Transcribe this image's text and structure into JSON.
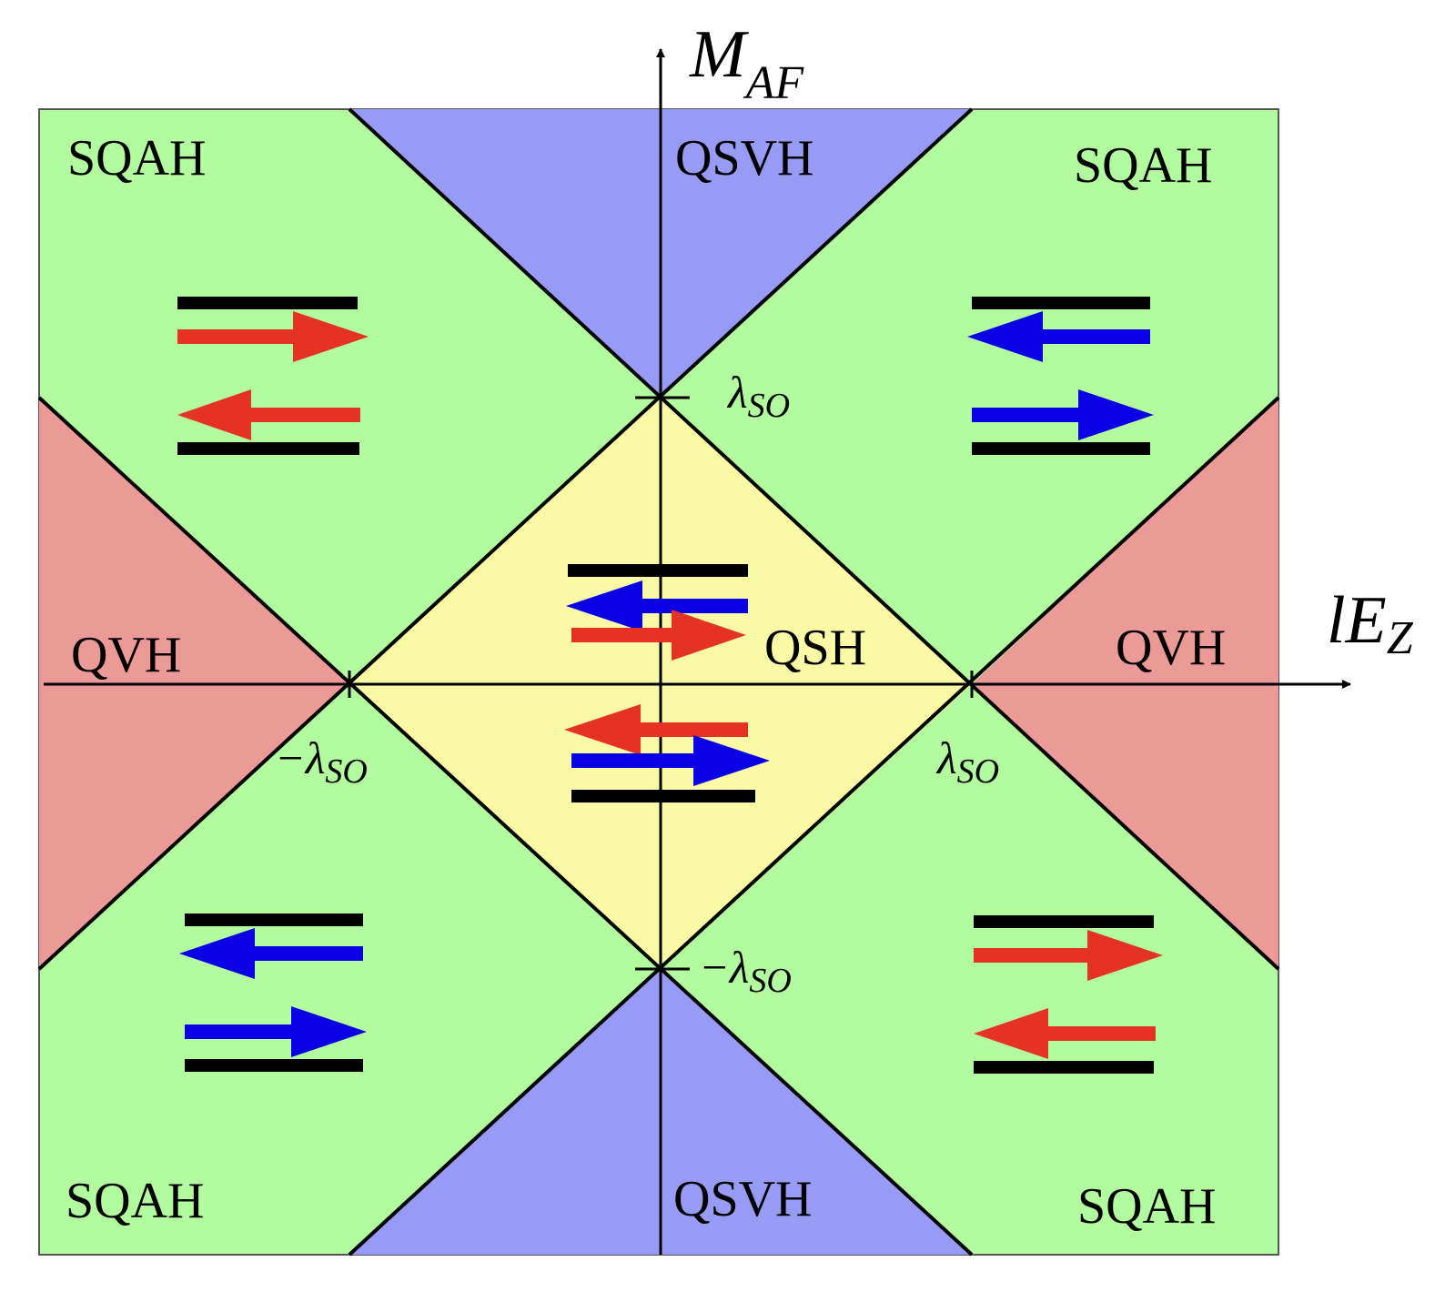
{
  "axes": {
    "x_label_main": "lE",
    "x_label_sub": "Z",
    "y_label_main": "M",
    "y_label_sub": "AF"
  },
  "ticks": {
    "x_neg": {
      "main": "−λ",
      "sub": "SO"
    },
    "x_pos": {
      "main": "λ",
      "sub": "SO"
    },
    "y_pos": {
      "main": "λ",
      "sub": "SO"
    },
    "y_neg": {
      "main": "−λ",
      "sub": "SO"
    }
  },
  "regions": {
    "qsvh_top": "QSVH",
    "qsvh_bottom": "QSVH",
    "sqah_top_left": "SQAH",
    "sqah_top_right": "SQAH",
    "sqah_bottom_left": "SQAH",
    "sqah_bottom_right": "SQAH",
    "qvh_left": "QVH",
    "qvh_right": "QVH",
    "qsh_center": "QSH"
  },
  "colors": {
    "sqah_fill": "#b2fb9f",
    "qsvh_fill": "#989bf3",
    "qvh_fill": "#eb9a97",
    "qsh_fill": "#fafaa6",
    "arrow_red": "#e43224",
    "arrow_blue": "#0b00e5",
    "edge_bar": "#000000"
  }
}
